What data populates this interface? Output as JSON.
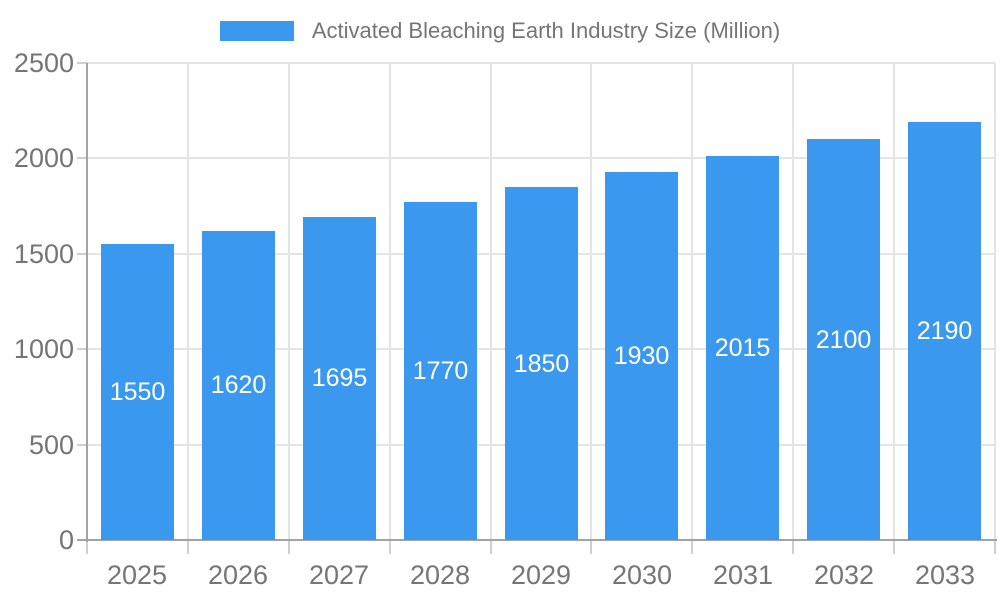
{
  "legend": {
    "label": "Activated Bleaching Earth Industry Size (Million)",
    "swatch_color": "#3a99ee",
    "text_color": "#757575"
  },
  "chart_data": {
    "type": "bar",
    "title": "Activated Bleaching Earth Industry Size (Million)",
    "categories": [
      "2025",
      "2026",
      "2027",
      "2028",
      "2029",
      "2030",
      "2031",
      "2032",
      "2033"
    ],
    "values": [
      1550,
      1620,
      1695,
      1770,
      1850,
      1930,
      2015,
      2100,
      2190
    ],
    "xlabel": "",
    "ylabel": "",
    "ylim": [
      0,
      2500
    ],
    "yticks": [
      0,
      500,
      1000,
      1500,
      2000,
      2500
    ],
    "grid": true,
    "legend_position": "top-center",
    "bar_color": "#3a99ee",
    "value_label_color": "#ffffff",
    "axis_text_color": "#757575",
    "grid_color": "#e4e4e4",
    "axis_line_color": "#a3a3a3"
  }
}
